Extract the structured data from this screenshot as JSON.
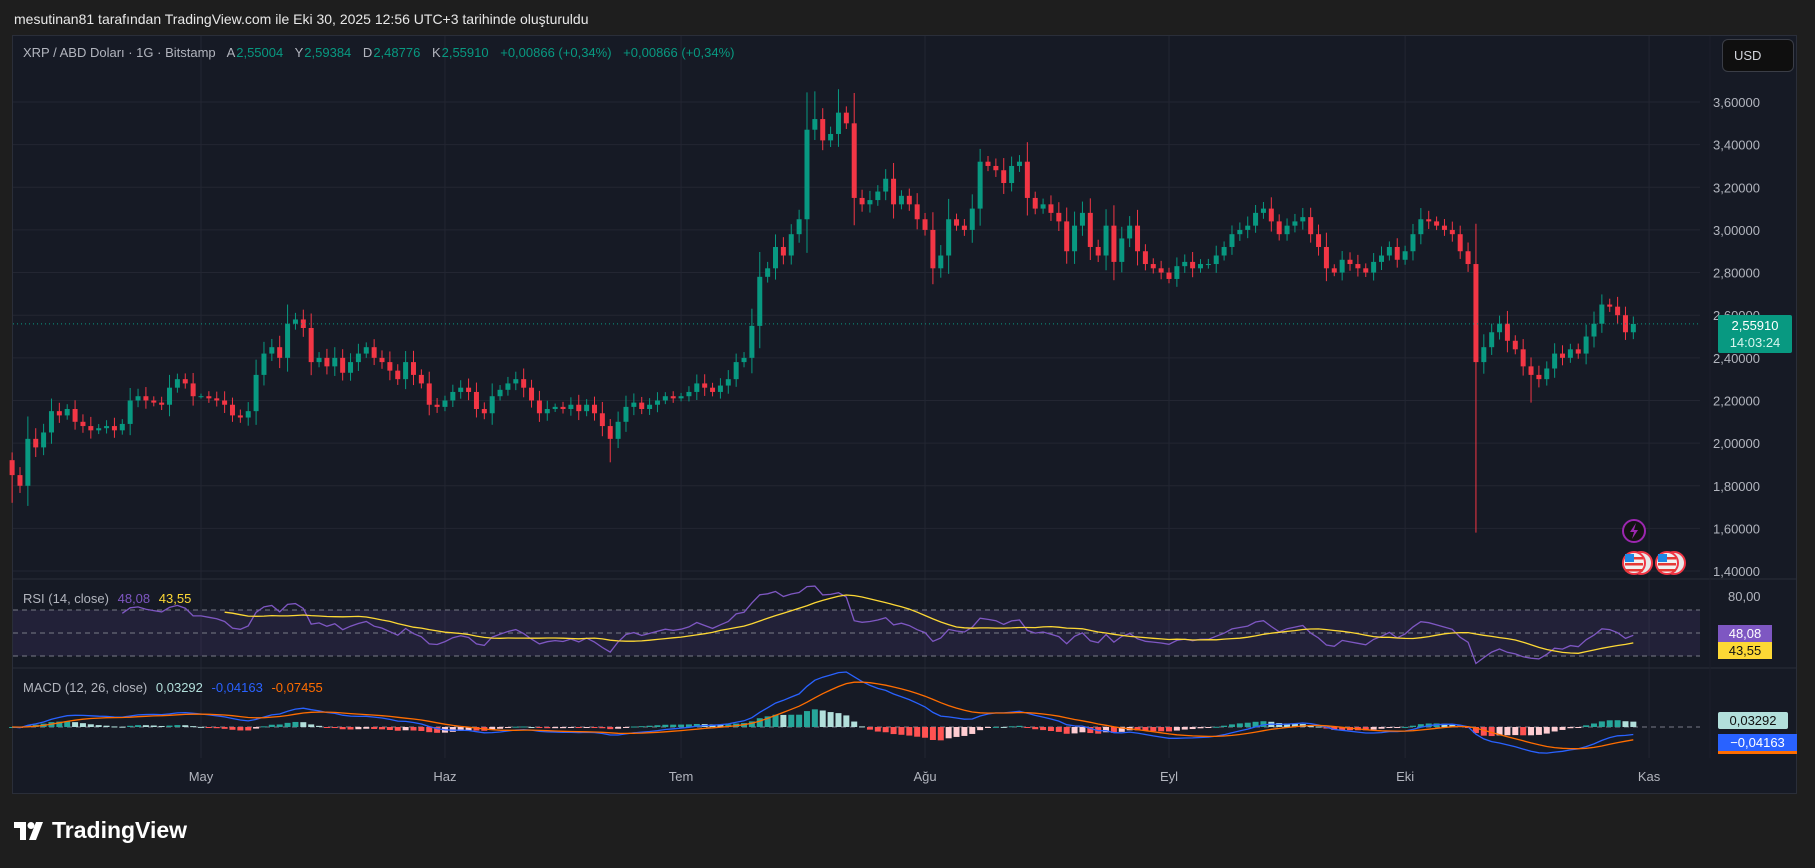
{
  "byline": "mesutinan81 tarafından TradingView.com ile Eki 30, 2025 12:56 UTC+3 tarihinde oluşturuldu",
  "legend": {
    "symbol": "XRP / ABD Doları · 1G · Bitstamp",
    "open_label": "A",
    "open": "2,55004",
    "high_label": "Y",
    "high": "2,59384",
    "low_label": "D",
    "low": "2,48776",
    "close_label": "K",
    "close": "2,55910",
    "change": "+0,00866 (+0,34%)",
    "change2": "+0,00866 (+0,34%)"
  },
  "currency_button": "USD",
  "price_badge": {
    "price": "2,55910",
    "countdown": "14:03:24"
  },
  "rsi": {
    "label": "RSI (14, close)",
    "value": "48,08",
    "ma": "43,55",
    "axis_tick": "80,00",
    "levels": [
      70,
      50,
      30
    ]
  },
  "macd": {
    "label": "MACD (12, 26, close)",
    "histogram": "0,03292",
    "macd": "-0,04163",
    "signal": "-0,07455",
    "badge_histogram": "0,03292",
    "badge_macd": "−0,04163"
  },
  "logo": "TradingView",
  "colors": {
    "up": "#089981",
    "down": "#f23645",
    "rsi": "#7e57c2",
    "rsi_ma": "#fdd835",
    "macd": "#2962ff",
    "signal": "#ff6d00"
  },
  "chart_data": {
    "type": "candlestick",
    "ylim": [
      1.4,
      3.7
    ],
    "price_ticks": [
      "3,60000",
      "3,40000",
      "3,20000",
      "3,00000",
      "2,80000",
      "2,60000",
      "2,40000",
      "2,20000",
      "2,00000",
      "1,80000",
      "1,60000",
      "1,40000"
    ],
    "price_tick_values": [
      3.6,
      3.4,
      3.2,
      3.0,
      2.8,
      2.6,
      2.4,
      2.2,
      2.0,
      1.8,
      1.6,
      1.4
    ],
    "x_ticks": [
      {
        "label": "May",
        "date": "2025-05-01"
      },
      {
        "label": "Haz",
        "date": "2025-06-01"
      },
      {
        "label": "Tem",
        "date": "2025-07-01"
      },
      {
        "label": "Ağu",
        "date": "2025-08-01"
      },
      {
        "label": "Eyl",
        "date": "2025-09-01"
      },
      {
        "label": "Eki",
        "date": "2025-10-01"
      },
      {
        "label": "Kas",
        "date": "2025-11-01"
      }
    ],
    "last_price": 2.5591,
    "first_open": 1.92,
    "daily_closes": {
      "2025-04": [
        1.85,
        1.8,
        2.02,
        1.98,
        2.05,
        2.15,
        2.13,
        2.16,
        2.1,
        2.08,
        2.06,
        2.07,
        2.08,
        2.06,
        2.09,
        2.2,
        2.22,
        2.2,
        2.19,
        2.18,
        2.26,
        2.3,
        2.28,
        2.22
      ],
      "2025-05": [
        2.22,
        2.21,
        2.2,
        2.18,
        2.13,
        2.12,
        2.15,
        2.32,
        2.42,
        2.45,
        2.4,
        2.56,
        2.58,
        2.54,
        2.38,
        2.4,
        2.36,
        2.4,
        2.33,
        2.38,
        2.42,
        2.45,
        2.4,
        2.38,
        2.34,
        2.3,
        2.38,
        2.32,
        2.28,
        2.18,
        2.17
      ],
      "2025-06": [
        2.2,
        2.24,
        2.26,
        2.24,
        2.16,
        2.14,
        2.22,
        2.25,
        2.28,
        2.3,
        2.26,
        2.2,
        2.14,
        2.16,
        2.17,
        2.16,
        2.18,
        2.15,
        2.18,
        2.14,
        2.08,
        2.02,
        2.1,
        2.17,
        2.19,
        2.16,
        2.18,
        2.2,
        2.22,
        2.21
      ],
      "2025-07": [
        2.22,
        2.24,
        2.28,
        2.26,
        2.24,
        2.27,
        2.3,
        2.38,
        2.4,
        2.55,
        2.78,
        2.82,
        2.92,
        2.88,
        2.98,
        3.05,
        3.47,
        3.52,
        3.42,
        3.45,
        3.55,
        3.5,
        3.15,
        3.12,
        3.14,
        3.18,
        3.24,
        3.12,
        3.16,
        3.12,
        3.05
      ],
      "2025-08": [
        3.0,
        2.82,
        2.88,
        3.05,
        3.02,
        3.0,
        3.1,
        3.32,
        3.3,
        3.28,
        3.22,
        3.3,
        3.32,
        3.15,
        3.1,
        3.12,
        3.08,
        3.04,
        2.9,
        3.02,
        3.08,
        2.92,
        2.88,
        3.02,
        2.85,
        2.96,
        3.02,
        2.9,
        2.84,
        2.82,
        2.8
      ],
      "2025-09": [
        2.77,
        2.83,
        2.85,
        2.82,
        2.84,
        2.84,
        2.88,
        2.92,
        2.98,
        3.0,
        3.02,
        3.08,
        3.1,
        3.04,
        2.98,
        3.02,
        3.04,
        3.06,
        2.98,
        2.92,
        2.82,
        2.8,
        2.86,
        2.84,
        2.82,
        2.8,
        2.85,
        2.88,
        2.92,
        2.86
      ],
      "2025-10": [
        2.9,
        2.98,
        3.05,
        3.04,
        3.02,
        3.0,
        2.98,
        2.9,
        2.84,
        2.38,
        2.45,
        2.52,
        2.56,
        2.48,
        2.44,
        2.36,
        2.32,
        2.3,
        2.35,
        2.42,
        2.4,
        2.44,
        2.42,
        2.5,
        2.56,
        2.65,
        2.64,
        2.6,
        2.52,
        2.5591
      ]
    },
    "extremes": [
      {
        "date": "2025-04-07",
        "low": 1.72
      },
      {
        "date": "2025-05-12",
        "high": 2.65
      },
      {
        "date": "2025-06-22",
        "low": 1.91
      },
      {
        "date": "2025-07-18",
        "high": 3.65
      },
      {
        "date": "2025-07-21",
        "high": 3.66
      },
      {
        "date": "2025-08-08",
        "high": 3.38
      },
      {
        "date": "2025-10-10",
        "low": 1.58
      },
      {
        "date": "2025-10-17",
        "low": 2.19
      },
      {
        "date": "2025-10-30",
        "high": 2.59384,
        "low": 2.48776
      }
    ]
  }
}
